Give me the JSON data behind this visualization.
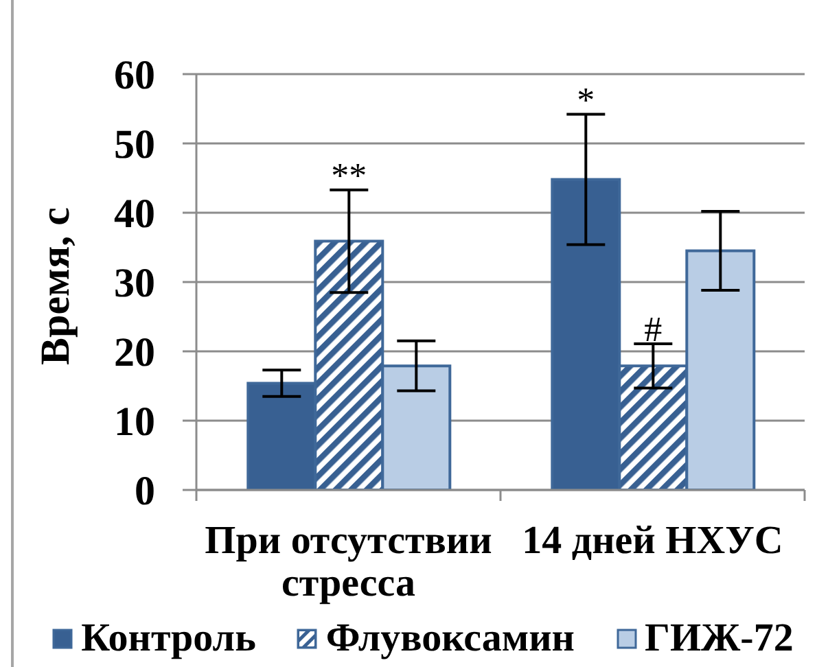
{
  "chart_data": {
    "type": "bar",
    "ylabel": "Время, с",
    "categories": [
      "При отсутствии стресса",
      "14 дней НХУС"
    ],
    "series": [
      {
        "name": "Контроль",
        "color": "#386092",
        "values": [
          15.4,
          44.8
        ],
        "errors": [
          1.9,
          9.4
        ]
      },
      {
        "name": "Флувоксамин",
        "color": "#386092",
        "values": [
          35.9,
          17.9
        ],
        "errors": [
          7.4,
          3.2
        ]
      },
      {
        "name": "ГИЖ-72",
        "color": "#b9cde5",
        "values": [
          17.9,
          34.5
        ],
        "errors": [
          3.6,
          5.7
        ]
      }
    ],
    "ylim": [
      0,
      60
    ],
    "yticks": [
      0,
      10,
      20,
      30,
      40,
      50,
      60
    ],
    "grid": "y",
    "legend": "bottom",
    "annotations": [
      {
        "text": "**",
        "x": "При отсутствии стресса",
        "y": 35.9
      },
      {
        "text": "*",
        "y": 44.8
      },
      {
        "text": "#",
        "x": "14 дней НХУС",
        "y": 17.9
      }
    ]
  }
}
